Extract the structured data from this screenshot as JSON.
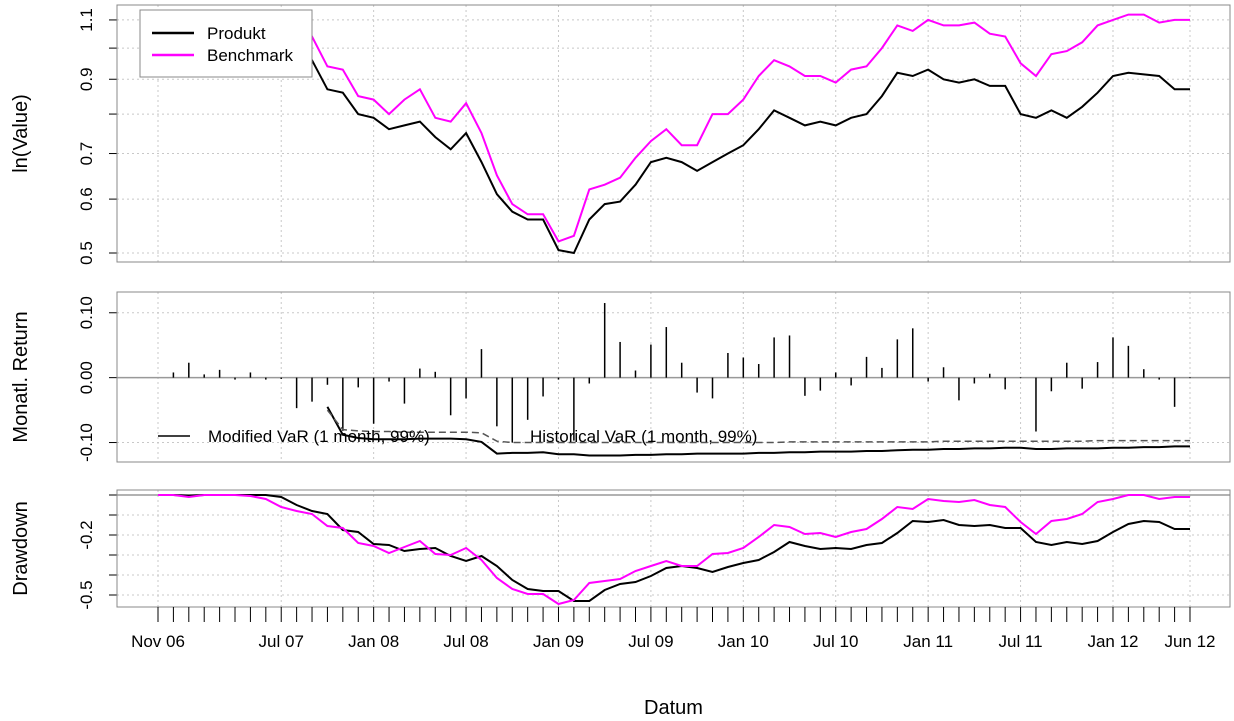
{
  "chart_data": [
    {
      "type": "line",
      "ylabel": "ln(Value)",
      "log_y": true,
      "ylim": [
        0.485,
        1.157
      ],
      "yticks": [
        0.5,
        0.6,
        0.7,
        {
          "value": 0.8,
          "label": null
        },
        0.9,
        {
          "value": 1.0,
          "label": null
        },
        1.1
      ],
      "grid": true,
      "legend": "top-left",
      "series": [
        {
          "name": "Produkt",
          "color": "#000000",
          "values": [
            null,
            null,
            null,
            null,
            null,
            null,
            null,
            null,
            0.98,
            0.97,
            0.96,
            0.87,
            0.86,
            0.8,
            0.79,
            0.76,
            0.77,
            0.78,
            0.74,
            0.71,
            0.75,
            0.68,
            0.61,
            0.575,
            0.56,
            0.56,
            0.505,
            0.5,
            0.56,
            0.59,
            0.595,
            0.63,
            0.68,
            0.69,
            0.68,
            0.66,
            0.68,
            0.7,
            0.72,
            0.76,
            0.81,
            0.79,
            0.77,
            0.78,
            0.77,
            0.79,
            0.8,
            0.85,
            0.92,
            0.91,
            0.93,
            0.9,
            0.89,
            0.9,
            0.88,
            0.88,
            0.8,
            0.79,
            0.81,
            0.79,
            0.82,
            0.86,
            0.91,
            0.92,
            0.915,
            0.91,
            0.87,
            0.87
          ]
        },
        {
          "name": "Benchmark",
          "color": "#ff00ff",
          "values": [
            null,
            null,
            null,
            null,
            null,
            null,
            null,
            null,
            0.99,
            1.01,
            1.04,
            0.94,
            0.93,
            0.85,
            0.84,
            0.8,
            0.84,
            0.87,
            0.79,
            0.78,
            0.83,
            0.75,
            0.65,
            0.59,
            0.57,
            0.57,
            0.52,
            0.53,
            0.62,
            0.63,
            0.645,
            0.69,
            0.73,
            0.76,
            0.72,
            0.72,
            0.8,
            0.8,
            0.84,
            0.91,
            0.96,
            0.94,
            0.91,
            0.91,
            0.89,
            0.93,
            0.94,
            1.0,
            1.08,
            1.06,
            1.1,
            1.08,
            1.08,
            1.09,
            1.05,
            1.04,
            0.95,
            0.91,
            0.98,
            0.99,
            1.02,
            1.08,
            1.1,
            1.12,
            1.12,
            1.09,
            1.1,
            1.1
          ]
        }
      ]
    },
    {
      "type": "bar",
      "ylabel": "Monatl. Return",
      "ylim": [
        -0.13,
        0.132
      ],
      "yticks": [
        {
          "value": -0.1,
          "label": "-0.10"
        },
        {
          "value": 0,
          "label": "0.00"
        },
        {
          "value": 0.1,
          "label": "0.10"
        }
      ],
      "grid": true,
      "color": "#000000",
      "values": [
        null,
        0.008,
        0.023,
        0.005,
        0.012,
        -0.003,
        0.008,
        -0.003,
        -0.002,
        -0.047,
        -0.037,
        -0.011,
        -0.082,
        -0.015,
        -0.071,
        -0.006,
        -0.04,
        0.014,
        0.009,
        -0.058,
        -0.032,
        0.044,
        -0.075,
        -0.1,
        -0.065,
        -0.029,
        -0.003,
        -0.097,
        -0.009,
        0.115,
        0.055,
        0.011,
        0.051,
        0.078,
        0.023,
        -0.023,
        -0.032,
        0.038,
        0.031,
        0.021,
        0.062,
        0.065,
        -0.028,
        -0.02,
        0.008,
        -0.012,
        0.032,
        0.015,
        0.059,
        0.076,
        -0.006,
        0.016,
        -0.035,
        -0.009,
        0.006,
        -0.018,
        0.001,
        -0.083,
        -0.021,
        0.023,
        -0.017,
        0.024,
        0.062,
        0.049,
        0.013,
        -0.003,
        -0.045,
        0.001
      ],
      "lines": [
        {
          "name": "Modified VaR (1 month, 99%)",
          "color": "#000000",
          "dashed": false,
          "values": [
            null,
            null,
            null,
            null,
            null,
            null,
            null,
            null,
            null,
            null,
            null,
            -0.045,
            -0.088,
            -0.093,
            -0.095,
            -0.095,
            -0.095,
            -0.094,
            -0.094,
            -0.094,
            -0.095,
            -0.099,
            -0.117,
            -0.116,
            -0.116,
            -0.115,
            -0.118,
            -0.118,
            -0.12,
            -0.12,
            -0.12,
            -0.119,
            -0.119,
            -0.118,
            -0.118,
            -0.117,
            -0.117,
            -0.117,
            -0.117,
            -0.116,
            -0.116,
            -0.115,
            -0.115,
            -0.114,
            -0.114,
            -0.114,
            -0.113,
            -0.113,
            -0.112,
            -0.111,
            -0.111,
            -0.11,
            -0.11,
            -0.109,
            -0.109,
            -0.108,
            -0.108,
            -0.11,
            -0.11,
            -0.109,
            -0.109,
            -0.109,
            -0.108,
            -0.108,
            -0.107,
            -0.107,
            -0.106,
            -0.106
          ]
        },
        {
          "name": "Historical VaR (1 month, 99%)",
          "color": "#555555",
          "dashed": true,
          "values": [
            null,
            null,
            null,
            null,
            null,
            null,
            null,
            null,
            null,
            null,
            null,
            -0.05,
            -0.08,
            -0.082,
            -0.083,
            -0.083,
            -0.084,
            -0.084,
            -0.084,
            -0.084,
            -0.084,
            -0.085,
            -0.098,
            -0.1,
            -0.1,
            -0.1,
            -0.1,
            -0.1,
            -0.1,
            -0.1,
            -0.1,
            -0.1,
            -0.1,
            -0.1,
            -0.1,
            -0.1,
            -0.1,
            -0.1,
            -0.1,
            -0.1,
            -0.1,
            -0.099,
            -0.099,
            -0.099,
            -0.099,
            -0.099,
            -0.099,
            -0.099,
            -0.099,
            -0.099,
            -0.099,
            -0.098,
            -0.098,
            -0.098,
            -0.098,
            -0.098,
            -0.098,
            -0.098,
            -0.098,
            -0.098,
            -0.098,
            -0.097,
            -0.097,
            -0.097,
            -0.097,
            -0.097,
            -0.097,
            -0.097
          ]
        }
      ]
    },
    {
      "type": "line",
      "ylabel": "Drawdown",
      "xlabel": "Datum",
      "ylim": [
        -0.56,
        0.025
      ],
      "yticks": [
        -0.5,
        {
          "value": -0.4,
          "label": null
        },
        {
          "value": -0.3,
          "label": null
        },
        -0.2,
        {
          "value": -0.1,
          "label": null
        },
        {
          "value": 0,
          "label": null
        }
      ],
      "grid": true,
      "categories": [
        "Nov 06",
        null,
        null,
        null,
        null,
        null,
        null,
        null,
        "Jul 07",
        null,
        null,
        null,
        null,
        null,
        "Jan 08",
        null,
        null,
        null,
        null,
        null,
        "Jul 08",
        null,
        null,
        null,
        null,
        null,
        "Jan 09",
        null,
        null,
        null,
        null,
        null,
        "Jul 09",
        null,
        null,
        null,
        null,
        null,
        "Jan 10",
        null,
        null,
        null,
        null,
        null,
        "Jul 10",
        null,
        null,
        null,
        null,
        null,
        "Jan 11",
        null,
        null,
        null,
        null,
        null,
        "Jul 11",
        null,
        null,
        null,
        null,
        null,
        "Jan 12",
        null,
        null,
        null,
        null,
        "Jun 12"
      ],
      "series": [
        {
          "color": "#000000",
          "values": [
            0,
            0,
            -0.003,
            0,
            0,
            0,
            0,
            0,
            -0.01,
            -0.05,
            -0.08,
            -0.095,
            -0.175,
            -0.185,
            -0.245,
            -0.25,
            -0.28,
            -0.27,
            -0.265,
            -0.305,
            -0.33,
            -0.305,
            -0.355,
            -0.425,
            -0.47,
            -0.48,
            -0.48,
            -0.53,
            -0.53,
            -0.475,
            -0.445,
            -0.435,
            -0.405,
            -0.365,
            -0.355,
            -0.365,
            -0.385,
            -0.36,
            -0.34,
            -0.325,
            -0.285,
            -0.235,
            -0.255,
            -0.27,
            -0.265,
            -0.27,
            -0.25,
            -0.24,
            -0.19,
            -0.13,
            -0.135,
            -0.125,
            -0.15,
            -0.155,
            -0.15,
            -0.165,
            -0.165,
            -0.235,
            -0.25,
            -0.235,
            -0.245,
            -0.23,
            -0.185,
            -0.145,
            -0.13,
            -0.135,
            -0.17,
            -0.17
          ]
        },
        {
          "color": "#ff00ff",
          "values": [
            0,
            0,
            -0.01,
            0,
            0,
            0,
            -0.005,
            -0.02,
            -0.06,
            -0.08,
            -0.095,
            -0.155,
            -0.165,
            -0.24,
            -0.255,
            -0.29,
            -0.26,
            -0.23,
            -0.295,
            -0.3,
            -0.265,
            -0.325,
            -0.415,
            -0.47,
            -0.495,
            -0.495,
            -0.545,
            -0.525,
            -0.44,
            -0.43,
            -0.42,
            -0.38,
            -0.355,
            -0.33,
            -0.355,
            -0.355,
            -0.295,
            -0.29,
            -0.265,
            -0.21,
            -0.15,
            -0.16,
            -0.195,
            -0.19,
            -0.21,
            -0.185,
            -0.17,
            -0.12,
            -0.06,
            -0.07,
            -0.02,
            -0.03,
            -0.035,
            -0.025,
            -0.05,
            -0.06,
            -0.135,
            -0.195,
            -0.13,
            -0.12,
            -0.095,
            -0.035,
            -0.02,
            0,
            0,
            -0.02,
            -0.01,
            -0.01
          ]
        }
      ]
    }
  ]
}
